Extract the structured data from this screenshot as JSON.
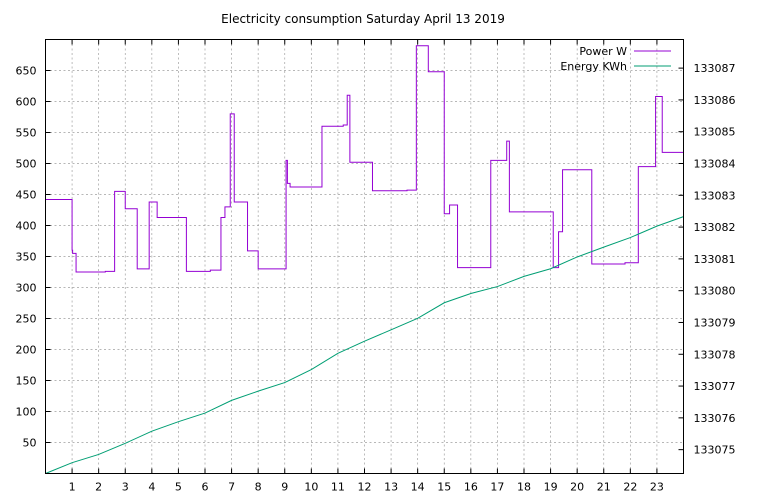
{
  "chart_data": {
    "type": "line",
    "title": "Electricity consumption Saturday April 13 2019",
    "grid": true,
    "legend_position": "top-right",
    "xlim": [
      0,
      24
    ],
    "x_ticks": [
      1,
      2,
      3,
      4,
      5,
      6,
      7,
      8,
      9,
      10,
      11,
      12,
      13,
      14,
      15,
      16,
      17,
      18,
      19,
      20,
      21,
      22,
      23
    ],
    "y_left": {
      "lim": [
        0,
        700
      ],
      "ticks": [
        50,
        100,
        150,
        200,
        250,
        300,
        350,
        400,
        450,
        500,
        550,
        600,
        650
      ]
    },
    "y_right": {
      "lim": [
        133074.25,
        133087.9
      ],
      "ticks": [
        133075,
        133076,
        133077,
        133078,
        133079,
        133080,
        133081,
        133082,
        133083,
        133084,
        133085,
        133086,
        133087
      ]
    },
    "series": [
      {
        "name": "Power W",
        "axis": "left",
        "color": "#9400d3",
        "step": true,
        "x": [
          0,
          1.0,
          1.02,
          1.15,
          2.25,
          2.6,
          3.0,
          3.45,
          3.9,
          4.2,
          5.3,
          6.2,
          6.6,
          6.75,
          6.95,
          7.1,
          7.6,
          8.0,
          9.05,
          9.1,
          9.2,
          10.0,
          10.4,
          11.2,
          11.35,
          11.45,
          12.3,
          13.6,
          13.95,
          14.4,
          15.0,
          15.2,
          15.5,
          16.6,
          16.75,
          17.35,
          17.45,
          19.1,
          19.3,
          19.45,
          20.25,
          20.55,
          21.8,
          21.9,
          22.3,
          22.4,
          22.95,
          23.2,
          24.0
        ],
        "y": [
          442,
          360,
          355,
          325,
          326,
          455,
          427,
          330,
          438,
          413,
          326,
          328,
          413,
          430,
          580,
          438,
          359,
          330,
          505,
          468,
          462,
          462,
          560,
          562,
          610,
          502,
          456,
          457,
          690,
          648,
          419,
          433,
          332,
          332,
          505,
          536,
          422,
          332,
          390,
          490,
          490,
          338,
          340,
          340,
          495,
          495,
          608,
          518,
          390
        ]
      },
      {
        "name": "Energy KWh",
        "axis": "right",
        "color": "#009e73",
        "step": false,
        "x": [
          0,
          1,
          2,
          3,
          4,
          5,
          6,
          7,
          8,
          9,
          10,
          11,
          12,
          13,
          14,
          15,
          16,
          17,
          18,
          19,
          20,
          21,
          22,
          23,
          24
        ],
        "y": [
          133074.25,
          133074.59,
          133074.85,
          133075.2,
          133075.58,
          133075.88,
          133076.15,
          133076.55,
          133076.84,
          133077.11,
          133077.52,
          133078.03,
          133078.41,
          133078.77,
          133079.13,
          133079.62,
          133079.91,
          133080.13,
          133080.45,
          133080.69,
          133081.06,
          133081.37,
          133081.67,
          133082.03,
          133082.33
        ]
      }
    ]
  }
}
